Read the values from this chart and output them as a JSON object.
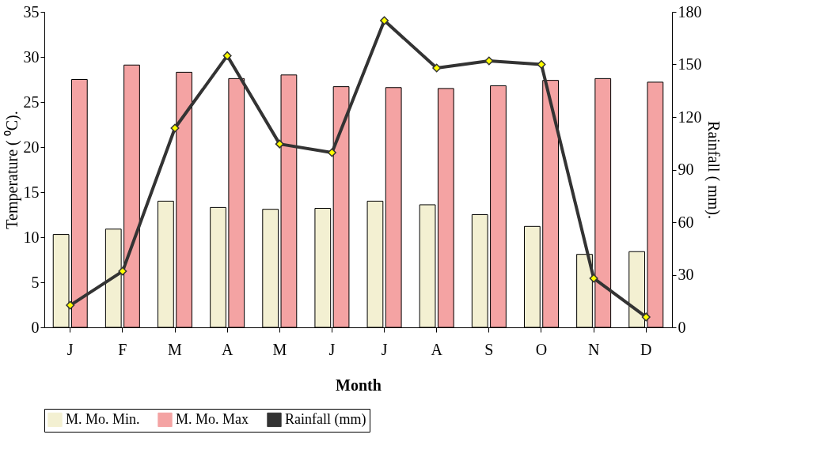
{
  "chart_data": {
    "type": "bar",
    "xlabel": "Month",
    "ylabel": "Temperature ( ⁰C).",
    "y2label": "Rainfall ( mm).",
    "categories": [
      "J",
      "F",
      "M",
      "A",
      "M",
      "J",
      "J",
      "A",
      "S",
      "O",
      "N",
      "D"
    ],
    "series": [
      {
        "name": "M. Mo. Min.",
        "color": "#f3f0d2",
        "values": [
          10.3,
          10.9,
          14.0,
          13.3,
          13.1,
          13.2,
          14.0,
          13.6,
          12.5,
          11.2,
          8.1,
          8.4
        ]
      },
      {
        "name": "M. Mo. Max",
        "color": "#f4a3a3",
        "values": [
          27.5,
          29.1,
          28.3,
          27.6,
          28.0,
          26.7,
          26.6,
          26.5,
          26.8,
          27.4,
          27.6,
          27.2
        ]
      },
      {
        "name": "Rainfall (mm)",
        "type": "line",
        "axis": "y2",
        "color": "#333333",
        "marker": "diamond",
        "values": [
          12.6,
          32,
          113.7,
          155,
          104.6,
          99.7,
          175,
          148,
          152,
          150,
          28,
          5.9
        ]
      }
    ],
    "ylim": [
      0,
      35
    ],
    "yticks": [
      0,
      5,
      10,
      15,
      20,
      25,
      30,
      35
    ],
    "y2lim": [
      0,
      180
    ],
    "y2ticks": [
      0,
      30,
      60,
      90,
      120,
      150,
      180
    ],
    "grid": false,
    "legend": "bottom"
  }
}
